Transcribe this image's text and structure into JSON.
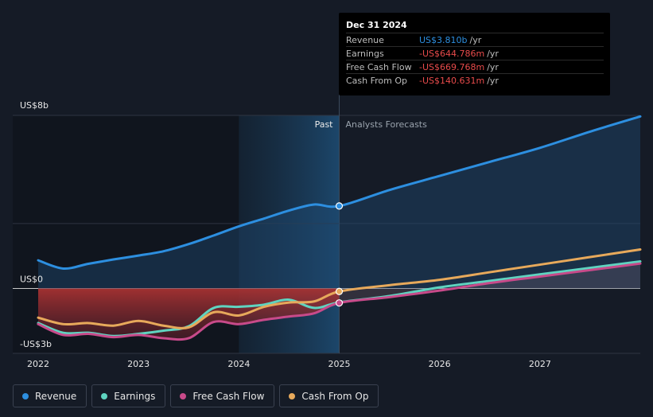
{
  "chart_data": {
    "type": "line",
    "y_unit_labels": {
      "top": "US$8b",
      "zero": "US$0",
      "bottom": "-US$3b"
    },
    "ylim": [
      -3,
      8
    ],
    "xlim": [
      2022.0,
      2028.0
    ],
    "x_ticks": [
      "2022",
      "2023",
      "2024",
      "2025",
      "2026",
      "2027"
    ],
    "x_tick_values": [
      2022,
      2023,
      2024,
      2025,
      2026,
      2027
    ],
    "divider_x": 2025.0,
    "highlight_start_x": 2024.0,
    "past_label": "Past",
    "forecast_label": "Analysts Forecasts",
    "series": [
      {
        "name": "Revenue",
        "color": "#2d8fe0",
        "x": [
          2022.0,
          2022.25,
          2022.5,
          2022.75,
          2023.0,
          2023.25,
          2023.5,
          2023.75,
          2024.0,
          2024.25,
          2024.5,
          2024.75,
          2025.0,
          2025.5,
          2026.0,
          2026.5,
          2027.0,
          2027.5,
          2028.0
        ],
        "values": [
          1.3,
          0.92,
          1.14,
          1.34,
          1.52,
          1.72,
          2.05,
          2.45,
          2.87,
          3.23,
          3.6,
          3.88,
          3.81,
          4.55,
          5.2,
          5.85,
          6.5,
          7.25,
          7.95
        ]
      },
      {
        "name": "Earnings",
        "color": "#5fd4c0",
        "x": [
          2022.0,
          2022.25,
          2022.5,
          2022.75,
          2023.0,
          2023.25,
          2023.5,
          2023.75,
          2024.0,
          2024.25,
          2024.5,
          2024.75,
          2025.0,
          2025.5,
          2026.0,
          2026.5,
          2027.0,
          2027.5,
          2028.0
        ],
        "values": [
          -1.6,
          -2.05,
          -2.05,
          -2.2,
          -2.1,
          -1.95,
          -1.75,
          -0.9,
          -0.85,
          -0.75,
          -0.52,
          -0.9,
          -0.645,
          -0.35,
          0.05,
          0.35,
          0.65,
          0.95,
          1.25
        ]
      },
      {
        "name": "Free Cash Flow",
        "color": "#c84a8a",
        "x": [
          2022.0,
          2022.25,
          2022.5,
          2022.75,
          2023.0,
          2023.25,
          2023.5,
          2023.75,
          2024.0,
          2024.25,
          2024.5,
          2024.75,
          2025.0,
          2025.5,
          2026.0,
          2026.5,
          2027.0,
          2027.5,
          2028.0
        ],
        "values": [
          -1.65,
          -2.15,
          -2.1,
          -2.25,
          -2.15,
          -2.3,
          -2.3,
          -1.55,
          -1.65,
          -1.45,
          -1.3,
          -1.15,
          -0.67,
          -0.4,
          -0.1,
          0.25,
          0.55,
          0.85,
          1.15
        ]
      },
      {
        "name": "Cash From Op",
        "color": "#e7a95b",
        "x": [
          2022.0,
          2022.25,
          2022.5,
          2022.75,
          2023.0,
          2023.25,
          2023.5,
          2023.75,
          2024.0,
          2024.25,
          2024.5,
          2024.75,
          2025.0,
          2025.5,
          2026.0,
          2026.5,
          2027.0,
          2027.5,
          2028.0
        ],
        "values": [
          -1.35,
          -1.65,
          -1.6,
          -1.72,
          -1.5,
          -1.72,
          -1.8,
          -1.1,
          -1.25,
          -0.85,
          -0.65,
          -0.6,
          -0.14,
          0.15,
          0.4,
          0.75,
          1.1,
          1.45,
          1.8
        ]
      }
    ]
  },
  "tooltip": {
    "date": "Dec 31 2024",
    "rows": [
      {
        "label": "Revenue",
        "value": "US$3.810b",
        "unit": "/yr",
        "color": "#2d8fe0"
      },
      {
        "label": "Earnings",
        "value": "-US$644.786m",
        "unit": "/yr",
        "color": "#e84b4b"
      },
      {
        "label": "Free Cash Flow",
        "value": "-US$669.768m",
        "unit": "/yr",
        "color": "#e84b4b"
      },
      {
        "label": "Cash From Op",
        "value": "-US$140.631m",
        "unit": "/yr",
        "color": "#e84b4b"
      }
    ]
  },
  "legend": [
    {
      "label": "Revenue",
      "color": "#2d8fe0"
    },
    {
      "label": "Earnings",
      "color": "#5fd4c0"
    },
    {
      "label": "Free Cash Flow",
      "color": "#c84a8a"
    },
    {
      "label": "Cash From Op",
      "color": "#e7a95b"
    }
  ]
}
